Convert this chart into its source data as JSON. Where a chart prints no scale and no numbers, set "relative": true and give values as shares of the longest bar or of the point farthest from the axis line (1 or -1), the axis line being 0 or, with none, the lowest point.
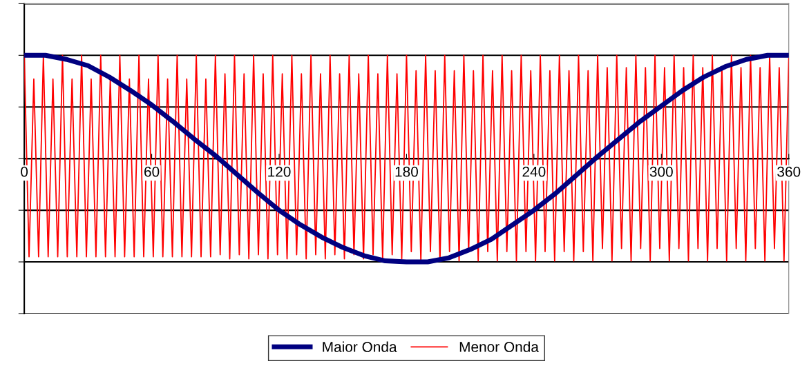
{
  "chart_data": {
    "type": "line",
    "relative": true,
    "tick_labels": "x",
    "grid": "y",
    "legend": "bottom",
    "marker": "none",
    "xlim": [
      0,
      360
    ],
    "xticks": [
      0,
      60,
      120,
      180,
      240,
      300,
      360
    ],
    "series": [
      {
        "name": "Maior Onda",
        "color": "#000080",
        "x": [
          0,
          10,
          20,
          30,
          40,
          50,
          60,
          70,
          80,
          90,
          100,
          110,
          120,
          130,
          140,
          150,
          160,
          170,
          180,
          190,
          200,
          210,
          220,
          230,
          240,
          250,
          260,
          270,
          280,
          290,
          300,
          310,
          320,
          330,
          340,
          350,
          360
        ],
        "values": [
          1,
          1,
          0.96,
          0.9,
          0.79,
          0.66,
          0.52,
          0.36,
          0.19,
          0.03,
          -0.15,
          -0.33,
          -0.5,
          -0.64,
          -0.76,
          -0.86,
          -0.94,
          -0.99,
          -1,
          -1,
          -0.96,
          -0.88,
          -0.78,
          -0.64,
          -0.5,
          -0.34,
          -0.16,
          0.02,
          0.19,
          0.36,
          0.51,
          0.66,
          0.79,
          0.89,
          0.96,
          1,
          1
        ]
      },
      {
        "name": "Menor Onda",
        "color": "#ff0000",
        "x": [
          0,
          2.25,
          4.5,
          6.75,
          9,
          11.25,
          13.5,
          15.75,
          18,
          20.25,
          22.5,
          24.75,
          27,
          29.25,
          31.5,
          33.75,
          36,
          38.25,
          40.5,
          42.75,
          45,
          47.25,
          49.5,
          51.75,
          54,
          56.25,
          58.5,
          60.75,
          63,
          65.25,
          67.5,
          69.75,
          72,
          74.25,
          76.5,
          78.75,
          81,
          83.25,
          85.5,
          87.75,
          90,
          92.25,
          94.5,
          96.75,
          99,
          101.25,
          103.5,
          105.75,
          108,
          110.25,
          112.5,
          114.75,
          117,
          119.25,
          121.5,
          123.75,
          126,
          128.25,
          130.5,
          132.75,
          135,
          137.25,
          139.5,
          141.75,
          144,
          146.25,
          148.5,
          150.75,
          153,
          155.25,
          157.5,
          159.75,
          162,
          164.25,
          166.5,
          168.75,
          171,
          173.25,
          175.5,
          177.75,
          180,
          182.25,
          184.5,
          186.75,
          189,
          191.25,
          193.5,
          195.75,
          198,
          200.25,
          202.5,
          204.75,
          207,
          209.25,
          211.5,
          213.75,
          216,
          218.25,
          220.5,
          222.75,
          225,
          227.25,
          229.5,
          231.75,
          234,
          236.25,
          238.5,
          240.75,
          243,
          245.25,
          247.5,
          249.75,
          252,
          254.25,
          256.5,
          258.75,
          261,
          263.25,
          265.5,
          267.75,
          270,
          272.25,
          274.5,
          276.75,
          279,
          281.25,
          283.5,
          285.75,
          288,
          290.25,
          292.5,
          294.75,
          297,
          299.25,
          301.5,
          303.75,
          306,
          308.25,
          310.5,
          312.75,
          315,
          317.25,
          319.5,
          321.75,
          324,
          326.25,
          328.5,
          330.75,
          333,
          335.25,
          337.5,
          339.75,
          342,
          344.25,
          346.5,
          348.75,
          351,
          353.25,
          355.5,
          357.75,
          360
        ],
        "values": [
          1,
          -0.95,
          0.77,
          -0.95,
          1,
          -0.95,
          0.77,
          -0.95,
          1,
          -0.95,
          0.77,
          -0.95,
          1,
          -0.95,
          0.77,
          -0.95,
          1,
          -0.95,
          0.77,
          -0.95,
          1,
          -0.95,
          0.77,
          -0.95,
          1,
          -0.95,
          0.77,
          -0.95,
          1,
          -0.95,
          0.77,
          -0.95,
          1,
          -0.95,
          0.77,
          -0.95,
          1,
          -0.95,
          0.77,
          -0.95,
          1,
          -0.93,
          0.82,
          -0.97,
          1,
          -0.93,
          0.82,
          -0.97,
          1,
          -0.93,
          0.82,
          -0.97,
          1,
          -0.93,
          0.82,
          -0.97,
          1,
          -0.93,
          0.82,
          -0.97,
          1,
          -0.93,
          0.82,
          -0.97,
          1,
          -0.93,
          0.82,
          -0.97,
          1,
          -0.93,
          0.82,
          -0.97,
          1,
          -0.93,
          0.82,
          -0.97,
          1,
          -0.93,
          0.82,
          -0.97,
          1,
          -0.9,
          0.85,
          -0.99,
          1,
          -0.9,
          0.85,
          -0.99,
          1,
          -0.9,
          0.85,
          -0.99,
          1,
          -0.9,
          0.85,
          -0.99,
          1,
          -0.9,
          0.85,
          -0.99,
          1,
          -0.9,
          0.85,
          -0.99,
          1,
          -0.9,
          0.85,
          -0.99,
          1,
          -0.9,
          0.85,
          -0.99,
          1,
          -0.9,
          0.85,
          -0.99,
          1,
          -0.9,
          0.85,
          -0.99,
          1,
          -0.87,
          0.88,
          -0.99,
          1,
          -0.87,
          0.88,
          -0.99,
          1,
          -0.87,
          0.88,
          -0.99,
          1,
          -0.87,
          0.88,
          -0.99,
          1,
          -0.87,
          0.88,
          -0.99,
          1,
          -0.87,
          0.88,
          -0.99,
          1,
          -0.87,
          0.88,
          -0.99,
          1,
          -0.87,
          0.88,
          -0.99,
          1,
          -0.87,
          0.88,
          -0.99,
          1,
          -0.87,
          0.88,
          -0.99,
          0.97
        ]
      }
    ]
  }
}
